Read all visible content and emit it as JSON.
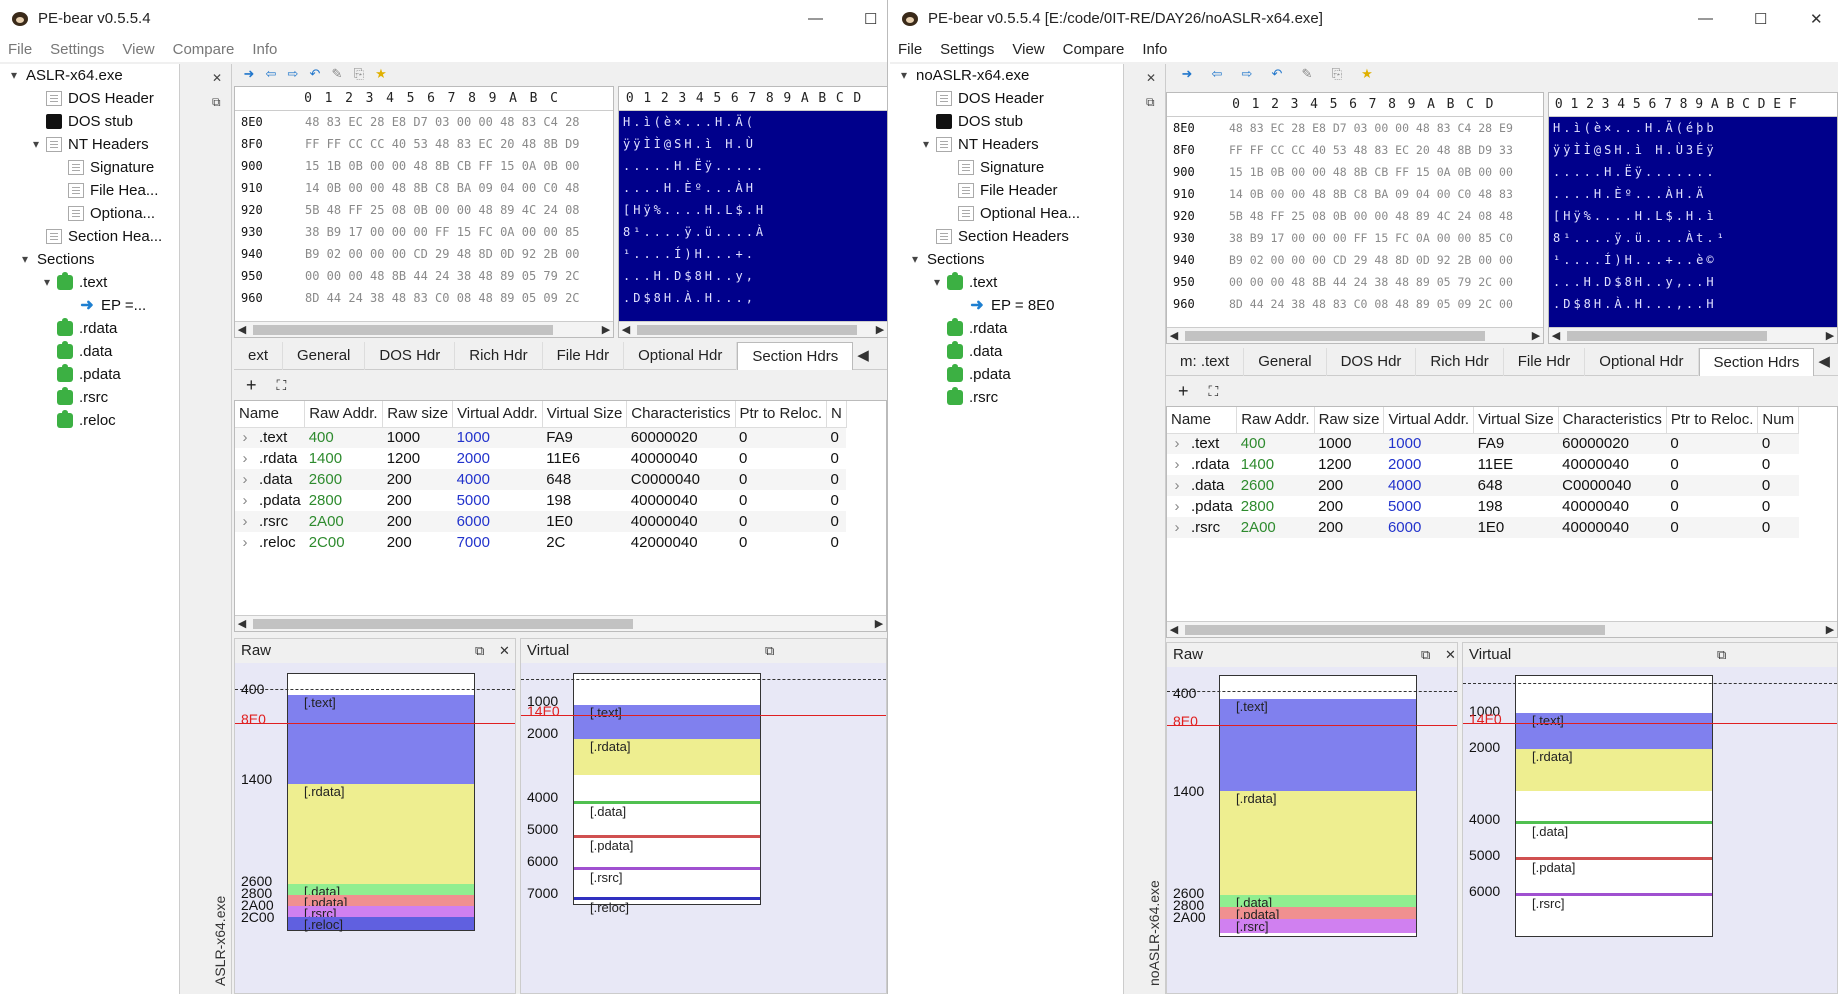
{
  "left": {
    "title": "PE-bear v0.5.5.4",
    "menu": [
      "File",
      "Settings",
      "View",
      "Compare",
      "Info"
    ],
    "tree": [
      {
        "label": "ASLR-x64.exe",
        "depth": 0,
        "arrow": "▾",
        "icon": "none"
      },
      {
        "label": "DOS Header",
        "depth": 1,
        "arrow": "",
        "icon": "doc"
      },
      {
        "label": "DOS stub",
        "depth": 1,
        "arrow": "",
        "icon": "black"
      },
      {
        "label": "NT Headers",
        "depth": 1,
        "arrow": "▾",
        "icon": "doc"
      },
      {
        "label": "Signature",
        "depth": 2,
        "arrow": "",
        "icon": "doc"
      },
      {
        "label": "File Hea...",
        "depth": 2,
        "arrow": "",
        "icon": "doc"
      },
      {
        "label": "Optiona...",
        "depth": 2,
        "arrow": "",
        "icon": "doc"
      },
      {
        "label": "Section Hea...",
        "depth": 1,
        "arrow": "",
        "icon": "doc"
      },
      {
        "label": "Sections",
        "depth": 0.5,
        "arrow": "▾",
        "icon": "none"
      },
      {
        "label": ".text",
        "depth": 1.5,
        "arrow": "▾",
        "icon": "puzzle"
      },
      {
        "label": "EP =...",
        "depth": 2.5,
        "arrow": "",
        "icon": "ep"
      },
      {
        "label": ".rdata",
        "depth": 1.5,
        "arrow": "",
        "icon": "puzzle"
      },
      {
        "label": ".data",
        "depth": 1.5,
        "arrow": "",
        "icon": "puzzle"
      },
      {
        "label": ".pdata",
        "depth": 1.5,
        "arrow": "",
        "icon": "puzzle"
      },
      {
        "label": ".rsrc",
        "depth": 1.5,
        "arrow": "",
        "icon": "puzzle"
      },
      {
        "label": ".reloc",
        "depth": 1.5,
        "arrow": "",
        "icon": "puzzle"
      }
    ],
    "vlabel": "ASLR-x64.exe",
    "hex_cols": [
      "0",
      "1",
      "2",
      "3",
      "4",
      "5",
      "6",
      "7",
      "8",
      "9",
      "A",
      "B",
      "C"
    ],
    "ascii_cols": [
      "0",
      "1",
      "2",
      "3",
      "4",
      "5",
      "6",
      "7",
      "8",
      "9",
      "A",
      "B",
      "C",
      "D"
    ],
    "hex_rows": [
      {
        "off": "8E0",
        "bytes": "48 83 EC 28 E8 D7 03 00 00 48 83 C4 28",
        "ascii": "H.ì(è×...H.Ä("
      },
      {
        "off": "8F0",
        "bytes": "FF FF CC CC 40 53 48 83 EC 20 48 8B D9",
        "ascii": "ÿÿÌÌ@SH.ì H.Ù"
      },
      {
        "off": "900",
        "bytes": "15 1B 0B 00 00 48 8B CB FF 15 0A 0B 00",
        "ascii": ".....H.Ëÿ....."
      },
      {
        "off": "910",
        "bytes": "14 0B 00 00 48 8B C8 BA 09 04 00 C0 48",
        "ascii": "....H.Èº...ÀH"
      },
      {
        "off": "920",
        "bytes": "5B 48 FF 25 08 0B 00 00 48 89 4C 24 08",
        "ascii": "[Hÿ%....H.L$.H"
      },
      {
        "off": "930",
        "bytes": "38 B9 17 00 00 00 FF 15 FC 0A 00 00 85",
        "ascii": "8¹....ÿ.ü....À"
      },
      {
        "off": "940",
        "bytes": "B9 02 00 00 00 CD 29 48 8D 0D 92 2B 00",
        "ascii": "¹....Í)H...+."
      },
      {
        "off": "950",
        "bytes": "00 00 00 48 8B 44 24 38 48 89 05 79 2C",
        "ascii": "...H.D$8H..y,"
      },
      {
        "off": "960",
        "bytes": "8D 44 24 38 48 83 C0 08 48 89 05 09 2C",
        "ascii": ".D$8H.À.H...,"
      }
    ],
    "tabs": [
      "ext",
      "General",
      "DOS Hdr",
      "Rich Hdr",
      "File Hdr",
      "Optional Hdr",
      "Section Hdrs"
    ],
    "active_tab": "Section Hdrs",
    "table_headers": [
      "Name",
      "Raw Addr.",
      "Raw size",
      "Virtual Addr.",
      "Virtual Size",
      "Characteristics",
      "Ptr to Reloc.",
      "N"
    ],
    "sections": [
      {
        "name": ".text",
        "raw": "400",
        "rsize": "1000",
        "vaddr": "1000",
        "vsize": "FA9",
        "chars": "60000020",
        "ptr": "0",
        "n": "0"
      },
      {
        "name": ".rdata",
        "raw": "1400",
        "rsize": "1200",
        "vaddr": "2000",
        "vsize": "11E6",
        "chars": "40000040",
        "ptr": "0",
        "n": "0"
      },
      {
        "name": ".data",
        "raw": "2600",
        "rsize": "200",
        "vaddr": "4000",
        "vsize": "648",
        "chars": "C0000040",
        "ptr": "0",
        "n": "0"
      },
      {
        "name": ".pdata",
        "raw": "2800",
        "rsize": "200",
        "vaddr": "5000",
        "vsize": "198",
        "chars": "40000040",
        "ptr": "0",
        "n": "0"
      },
      {
        "name": ".rsrc",
        "raw": "2A00",
        "rsize": "200",
        "vaddr": "6000",
        "vsize": "1E0",
        "chars": "40000040",
        "ptr": "0",
        "n": "0"
      },
      {
        "name": ".reloc",
        "raw": "2C00",
        "rsize": "200",
        "vaddr": "7000",
        "vsize": "2C",
        "chars": "42000040",
        "ptr": "0",
        "n": "0"
      }
    ],
    "raw_title": "Raw",
    "virtual_title": "Virtual",
    "raw_axis": [
      "400",
      "1400",
      "2600",
      "2800",
      "2A00",
      "2C00"
    ],
    "virt_axis": [
      "1000",
      "2000",
      "4000",
      "5000",
      "6000",
      "7000"
    ],
    "ep_label_raw": "8E0",
    "ep_label_virt": "14E0",
    "map_labels": [
      "[.text]",
      "[.rdata]",
      "[.data]",
      "[.pdata]",
      "[.rsrc]",
      "[.reloc]"
    ]
  },
  "right": {
    "title": "PE-bear v0.5.5.4 [E:/code/0IT-RE/DAY26/noASLR-x64.exe]",
    "menu": [
      "File",
      "Settings",
      "View",
      "Compare",
      "Info"
    ],
    "tree": [
      {
        "label": "noASLR-x64.exe",
        "depth": 0,
        "arrow": "▾",
        "icon": "none"
      },
      {
        "label": "DOS Header",
        "depth": 1,
        "arrow": "",
        "icon": "doc"
      },
      {
        "label": "DOS stub",
        "depth": 1,
        "arrow": "",
        "icon": "black"
      },
      {
        "label": "NT Headers",
        "depth": 1,
        "arrow": "▾",
        "icon": "doc"
      },
      {
        "label": "Signature",
        "depth": 2,
        "arrow": "",
        "icon": "doc"
      },
      {
        "label": "File Header",
        "depth": 2,
        "arrow": "",
        "icon": "doc"
      },
      {
        "label": "Optional Hea...",
        "depth": 2,
        "arrow": "",
        "icon": "doc"
      },
      {
        "label": "Section Headers",
        "depth": 1,
        "arrow": "",
        "icon": "doc"
      },
      {
        "label": "Sections",
        "depth": 0.5,
        "arrow": "▾",
        "icon": "none"
      },
      {
        "label": ".text",
        "depth": 1.5,
        "arrow": "▾",
        "icon": "puzzle"
      },
      {
        "label": "EP = 8E0",
        "depth": 2.5,
        "arrow": "",
        "icon": "ep"
      },
      {
        "label": ".rdata",
        "depth": 1.5,
        "arrow": "",
        "icon": "puzzle"
      },
      {
        "label": ".data",
        "depth": 1.5,
        "arrow": "",
        "icon": "puzzle"
      },
      {
        "label": ".pdata",
        "depth": 1.5,
        "arrow": "",
        "icon": "puzzle"
      },
      {
        "label": ".rsrc",
        "depth": 1.5,
        "arrow": "",
        "icon": "puzzle"
      }
    ],
    "vlabel": "noASLR-x64.exe",
    "hex_cols": [
      "0",
      "1",
      "2",
      "3",
      "4",
      "5",
      "6",
      "7",
      "8",
      "9",
      "A",
      "B",
      "C",
      "D"
    ],
    "ascii_cols": [
      "0",
      "1",
      "2",
      "3",
      "4",
      "5",
      "6",
      "7",
      "8",
      "9",
      "A",
      "B",
      "C",
      "D",
      "E",
      "F"
    ],
    "hex_rows": [
      {
        "off": "8E0",
        "bytes": "48 83 EC 28 E8 D7 03 00 00 48 83 C4 28 E9",
        "ascii": "H.ì(è×...H.Ä(éþb"
      },
      {
        "off": "8F0",
        "bytes": "FF FF CC CC 40 53 48 83 EC 20 48 8B D9 33",
        "ascii": "ÿÿÌÌ@SH.ì H.Ù3Éÿ"
      },
      {
        "off": "900",
        "bytes": "15 1B 0B 00 00 48 8B CB FF 15 0A 0B 00 00",
        "ascii": ".....H.Ëÿ......."
      },
      {
        "off": "910",
        "bytes": "14 0B 00 00 48 8B C8 BA 09 04 00 C0 48 83",
        "ascii": "....H.Èº...ÀH.Ä"
      },
      {
        "off": "920",
        "bytes": "5B 48 FF 25 08 0B 00 00 48 89 4C 24 08 48",
        "ascii": "[Hÿ%....H.L$.H.ì"
      },
      {
        "off": "930",
        "bytes": "38 B9 17 00 00 00 FF 15 FC 0A 00 00 85 C0",
        "ascii": "8¹....ÿ.ü....Àt.¹"
      },
      {
        "off": "940",
        "bytes": "B9 02 00 00 00 CD 29 48 8D 0D 92 2B 00 00",
        "ascii": "¹....Í)H...+..è©"
      },
      {
        "off": "950",
        "bytes": "00 00 00 48 8B 44 24 38 48 89 05 79 2C 00",
        "ascii": "...H.D$8H..y,..H"
      },
      {
        "off": "960",
        "bytes": "8D 44 24 38 48 83 C0 08 48 89 05 09 2C 00",
        "ascii": ".D$8H.À.H...,..H"
      }
    ],
    "tabs": [
      "m: .text",
      "General",
      "DOS Hdr",
      "Rich Hdr",
      "File Hdr",
      "Optional Hdr",
      "Section Hdrs"
    ],
    "active_tab": "Section Hdrs",
    "table_headers": [
      "Name",
      "Raw Addr.",
      "Raw size",
      "Virtual Addr.",
      "Virtual Size",
      "Characteristics",
      "Ptr to Reloc.",
      "Num"
    ],
    "sections": [
      {
        "name": ".text",
        "raw": "400",
        "rsize": "1000",
        "vaddr": "1000",
        "vsize": "FA9",
        "chars": "60000020",
        "ptr": "0",
        "n": "0"
      },
      {
        "name": ".rdata",
        "raw": "1400",
        "rsize": "1200",
        "vaddr": "2000",
        "vsize": "11EE",
        "chars": "40000040",
        "ptr": "0",
        "n": "0"
      },
      {
        "name": ".data",
        "raw": "2600",
        "rsize": "200",
        "vaddr": "4000",
        "vsize": "648",
        "chars": "C0000040",
        "ptr": "0",
        "n": "0"
      },
      {
        "name": ".pdata",
        "raw": "2800",
        "rsize": "200",
        "vaddr": "5000",
        "vsize": "198",
        "chars": "40000040",
        "ptr": "0",
        "n": "0"
      },
      {
        "name": ".rsrc",
        "raw": "2A00",
        "rsize": "200",
        "vaddr": "6000",
        "vsize": "1E0",
        "chars": "40000040",
        "ptr": "0",
        "n": "0"
      }
    ],
    "raw_title": "Raw",
    "virtual_title": "Virtual",
    "raw_axis": [
      "400",
      "1400",
      "2600",
      "2800",
      "2A00"
    ],
    "virt_axis": [
      "1000",
      "2000",
      "4000",
      "5000",
      "6000"
    ],
    "ep_label_raw": "8E0",
    "ep_label_virt": "14E0",
    "map_labels": [
      "[.text]",
      "[.rdata]",
      "[.data]",
      "[.pdata]",
      "[.rsrc]"
    ]
  }
}
